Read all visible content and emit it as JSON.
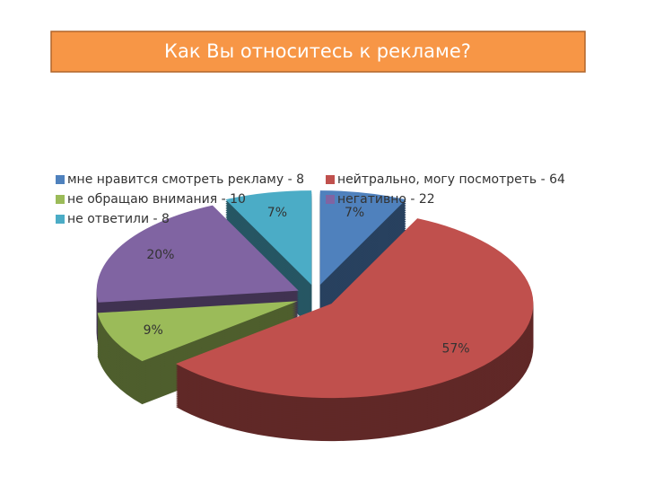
{
  "chart_data": {
    "type": "pie",
    "title": "Как Вы относитесь к рекламе?",
    "categories": [
      "мне нравится смотреть рекламу - 8",
      "нейтрально, могу посмотреть - 64",
      "не обращаю внимания - 10",
      "негативно - 22",
      "не ответили - 8"
    ],
    "values": [
      7,
      57,
      9,
      20,
      7
    ],
    "value_labels": [
      "7%",
      "57%",
      "9%",
      "20%",
      "7%"
    ],
    "colors": [
      "#4f81bd",
      "#c0504d",
      "#9bbb59",
      "#8064a2",
      "#4bacc6"
    ]
  }
}
